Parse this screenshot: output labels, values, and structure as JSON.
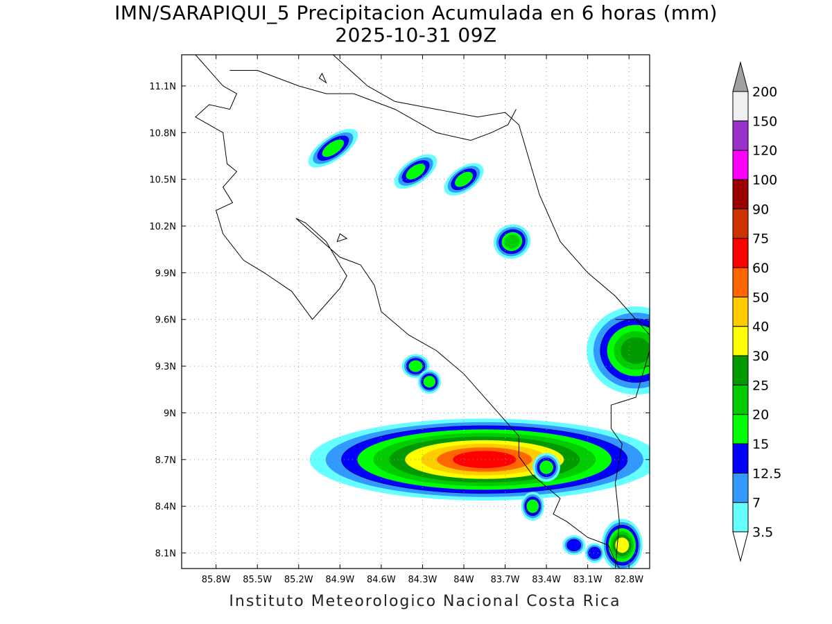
{
  "title": {
    "line1": "IMN/SARAPIQUI_5 Precipitacion Acumulada en 6 horas (mm)",
    "line2": "2025-10-31 09Z"
  },
  "credit": "Instituto Meteorologico Nacional Costa Rica",
  "map": {
    "lon_range": [
      -86.05,
      -82.65
    ],
    "lat_range": [
      8.0,
      11.3
    ],
    "x_ticks": [
      {
        "value": -85.8,
        "label": "85.8W"
      },
      {
        "value": -85.5,
        "label": "85.5W"
      },
      {
        "value": -85.2,
        "label": "85.2W"
      },
      {
        "value": -84.9,
        "label": "84.9W"
      },
      {
        "value": -84.6,
        "label": "84.6W"
      },
      {
        "value": -84.3,
        "label": "84.3W"
      },
      {
        "value": -84.0,
        "label": "84W"
      },
      {
        "value": -83.7,
        "label": "83.7W"
      },
      {
        "value": -83.4,
        "label": "83.4W"
      },
      {
        "value": -83.1,
        "label": "83.1W"
      },
      {
        "value": -82.8,
        "label": "82.8W"
      }
    ],
    "y_ticks": [
      {
        "value": 11.1,
        "label": "11.1N"
      },
      {
        "value": 10.8,
        "label": "10.8N"
      },
      {
        "value": 10.5,
        "label": "10.5N"
      },
      {
        "value": 10.2,
        "label": "10.2N"
      },
      {
        "value": 9.9,
        "label": "9.9N"
      },
      {
        "value": 9.6,
        "label": "9.6N"
      },
      {
        "value": 9.3,
        "label": "9.3N"
      },
      {
        "value": 9.0,
        "label": "9N"
      },
      {
        "value": 8.7,
        "label": "8.7N"
      },
      {
        "value": 8.4,
        "label": "8.4N"
      },
      {
        "value": 8.1,
        "label": "8.1N"
      }
    ],
    "grid": true,
    "coastline": [
      [
        -85.95,
        11.3
      ],
      [
        -85.75,
        11.1
      ],
      [
        -85.65,
        11.05
      ],
      [
        -85.7,
        10.95
      ],
      [
        -85.85,
        10.98
      ],
      [
        -85.95,
        10.9
      ],
      [
        -85.75,
        10.8
      ],
      [
        -85.72,
        10.6
      ],
      [
        -85.65,
        10.55
      ],
      [
        -85.75,
        10.45
      ],
      [
        -85.68,
        10.35
      ],
      [
        -85.8,
        10.3
      ],
      [
        -85.75,
        10.15
      ],
      [
        -85.6,
        9.98
      ],
      [
        -85.45,
        9.9
      ],
      [
        -85.25,
        9.78
      ],
      [
        -85.1,
        9.6
      ],
      [
        -84.95,
        9.75
      ],
      [
        -84.9,
        9.8
      ],
      [
        -84.85,
        9.88
      ],
      [
        -84.9,
        9.95
      ],
      [
        -85.0,
        10.1
      ],
      [
        -85.15,
        10.22
      ],
      [
        -85.22,
        10.25
      ],
      [
        -84.9,
        10.0
      ],
      [
        -84.75,
        9.95
      ],
      [
        -84.65,
        9.82
      ],
      [
        -84.6,
        9.65
      ],
      [
        -84.4,
        9.5
      ],
      [
        -84.2,
        9.4
      ],
      [
        -84.0,
        9.25
      ],
      [
        -83.8,
        9.05
      ],
      [
        -83.6,
        8.85
      ],
      [
        -83.6,
        8.72
      ],
      [
        -83.5,
        8.6
      ],
      [
        -83.3,
        8.45
      ],
      [
        -83.35,
        8.35
      ],
      [
        -83.25,
        8.3
      ],
      [
        -83.1,
        8.2
      ],
      [
        -82.95,
        8.15
      ],
      [
        -82.9,
        8.05
      ],
      [
        -82.87,
        8.0
      ]
    ],
    "coastline_east": [
      [
        -84.95,
        11.3
      ],
      [
        -84.7,
        11.1
      ],
      [
        -84.5,
        11.0
      ],
      [
        -84.2,
        10.95
      ],
      [
        -83.9,
        10.9
      ],
      [
        -83.7,
        10.93
      ],
      [
        -83.6,
        10.85
      ],
      [
        -83.55,
        10.7
      ],
      [
        -83.45,
        10.4
      ],
      [
        -83.3,
        10.1
      ],
      [
        -83.1,
        9.9
      ],
      [
        -82.9,
        9.75
      ],
      [
        -82.75,
        9.6
      ],
      [
        -82.65,
        9.5
      ]
    ],
    "border_north": [
      [
        -85.7,
        11.2
      ],
      [
        -85.5,
        11.2
      ],
      [
        -85.2,
        11.1
      ],
      [
        -85.0,
        11.05
      ],
      [
        -84.8,
        11.05
      ],
      [
        -84.5,
        10.95
      ],
      [
        -84.2,
        10.8
      ],
      [
        -83.95,
        10.75
      ],
      [
        -83.8,
        10.8
      ],
      [
        -83.68,
        10.85
      ],
      [
        -83.62,
        10.95
      ]
    ],
    "border_panama": [
      [
        -82.9,
        9.6
      ],
      [
        -82.75,
        9.6
      ],
      [
        -82.65,
        9.55
      ],
      [
        -82.65,
        9.4
      ],
      [
        -82.75,
        9.1
      ],
      [
        -82.93,
        9.05
      ],
      [
        -82.93,
        8.9
      ],
      [
        -82.85,
        8.8
      ],
      [
        -82.9,
        8.55
      ],
      [
        -82.87,
        8.3
      ],
      [
        -82.9,
        8.0
      ]
    ],
    "islands": [
      [
        [
          -85.05,
          11.15
        ],
        [
          -85.0,
          11.12
        ],
        [
          -85.03,
          11.18
        ],
        [
          -85.05,
          11.15
        ]
      ],
      [
        [
          -84.9,
          10.15
        ],
        [
          -84.85,
          10.12
        ],
        [
          -84.92,
          10.1
        ],
        [
          -84.9,
          10.15
        ]
      ]
    ]
  },
  "colorbar": {
    "levels": [
      "3.5",
      "7",
      "12.5",
      "15",
      "20",
      "25",
      "30",
      "40",
      "50",
      "60",
      "75",
      "90",
      "100",
      "120",
      "150",
      "200"
    ],
    "colors": [
      "#66ffff",
      "#3399ff",
      "#0000ff",
      "#00ff00",
      "#00cc00",
      "#009900",
      "#ffff00",
      "#ffcc00",
      "#ff6600",
      "#ff0000",
      "#cc3300",
      "#990000",
      "#ff00ff",
      "#9933cc",
      "#f0f0f0",
      "#a0a0a0"
    ],
    "under_color": "#ffffff",
    "over_color": "#a0a0a0"
  },
  "precip_cells": [
    {
      "lon": -84.95,
      "lat": 10.7,
      "rx": 0.12,
      "ry": 0.04,
      "angle": -35,
      "level": 3
    },
    {
      "lon": -84.35,
      "lat": 10.55,
      "rx": 0.1,
      "ry": 0.04,
      "angle": -35,
      "level": 3
    },
    {
      "lon": -84.0,
      "lat": 10.5,
      "rx": 0.09,
      "ry": 0.04,
      "angle": -35,
      "level": 3
    },
    {
      "lon": -83.65,
      "lat": 10.1,
      "rx": 0.06,
      "ry": 0.05,
      "angle": -20,
      "level": 4
    },
    {
      "lon": -82.75,
      "lat": 9.4,
      "rx": 0.15,
      "ry": 0.12,
      "angle": 0,
      "level": 5
    },
    {
      "lon": -83.85,
      "lat": 8.7,
      "rx": 0.35,
      "ry": 0.07,
      "angle": 0,
      "level": 9
    },
    {
      "lon": -84.35,
      "lat": 9.3,
      "rx": 0.05,
      "ry": 0.04,
      "angle": 0,
      "level": 3
    },
    {
      "lon": -84.25,
      "lat": 9.2,
      "rx": 0.04,
      "ry": 0.04,
      "angle": 0,
      "level": 3
    },
    {
      "lon": -83.4,
      "lat": 8.65,
      "rx": 0.05,
      "ry": 0.05,
      "angle": 0,
      "level": 3
    },
    {
      "lon": -83.5,
      "lat": 8.4,
      "rx": 0.04,
      "ry": 0.05,
      "angle": 0,
      "level": 3
    },
    {
      "lon": -82.85,
      "lat": 8.15,
      "rx": 0.05,
      "ry": 0.06,
      "angle": 0,
      "level": 6
    },
    {
      "lon": -83.05,
      "lat": 8.1,
      "rx": 0.04,
      "ry": 0.04,
      "angle": 0,
      "level": 2
    },
    {
      "lon": -83.2,
      "lat": 8.15,
      "rx": 0.05,
      "ry": 0.04,
      "angle": 0,
      "level": 2
    }
  ]
}
